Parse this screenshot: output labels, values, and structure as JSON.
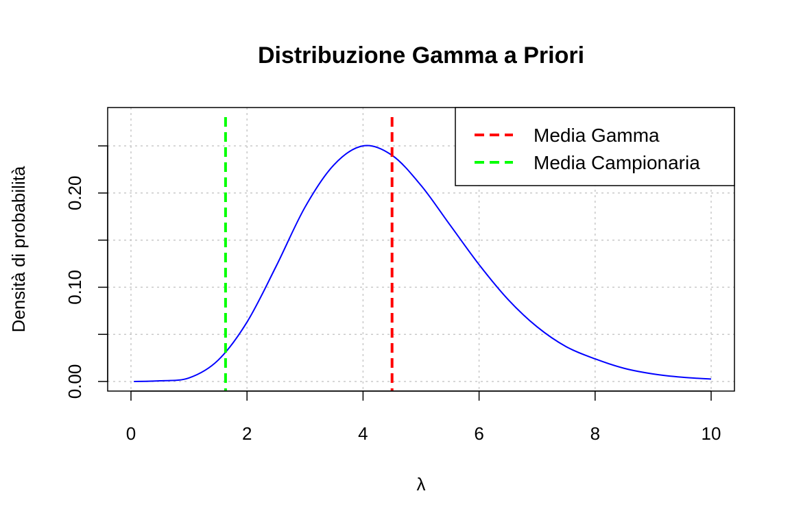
{
  "chart_data": {
    "type": "line",
    "title": "Distribuzione Gamma a Priori",
    "xlabel": "λ",
    "ylabel": "Densità di probabilità",
    "xlim": [
      0,
      10
    ],
    "ylim": [
      0,
      0.28
    ],
    "x_ticks": [
      0,
      2,
      4,
      6,
      8,
      10
    ],
    "x_tick_labels": [
      "0",
      "2",
      "4",
      "6",
      "8",
      "10"
    ],
    "y_ticks": [
      0,
      0.05,
      0.1,
      0.15,
      0.2,
      0.25
    ],
    "y_tick_labels": [
      "0.00",
      "",
      "0.10",
      "",
      "0.20",
      ""
    ],
    "grid": true,
    "legend_position": "top-right",
    "series": [
      {
        "color": "#0000ff",
        "x": [
          0.05,
          0.5,
          1.0,
          1.5,
          2.0,
          2.5,
          3.0,
          3.5,
          4.0,
          4.5,
          5.0,
          5.5,
          6.0,
          6.5,
          7.0,
          7.5,
          8.0,
          8.5,
          9.0,
          9.5,
          10.0
        ],
        "y": [
          0.0,
          0.0007,
          0.0038,
          0.0225,
          0.063,
          0.122,
          0.185,
          0.23,
          0.25,
          0.24,
          0.208,
          0.166,
          0.124,
          0.087,
          0.058,
          0.037,
          0.024,
          0.014,
          0.008,
          0.0045,
          0.0026
        ]
      }
    ],
    "vlines": [
      {
        "name": "Media Gamma",
        "x": 4.5,
        "color": "#ff0000",
        "style": "dashed"
      },
      {
        "name": "Media Campionaria",
        "x": 1.63,
        "color": "#00ff00",
        "style": "dashed"
      }
    ]
  }
}
